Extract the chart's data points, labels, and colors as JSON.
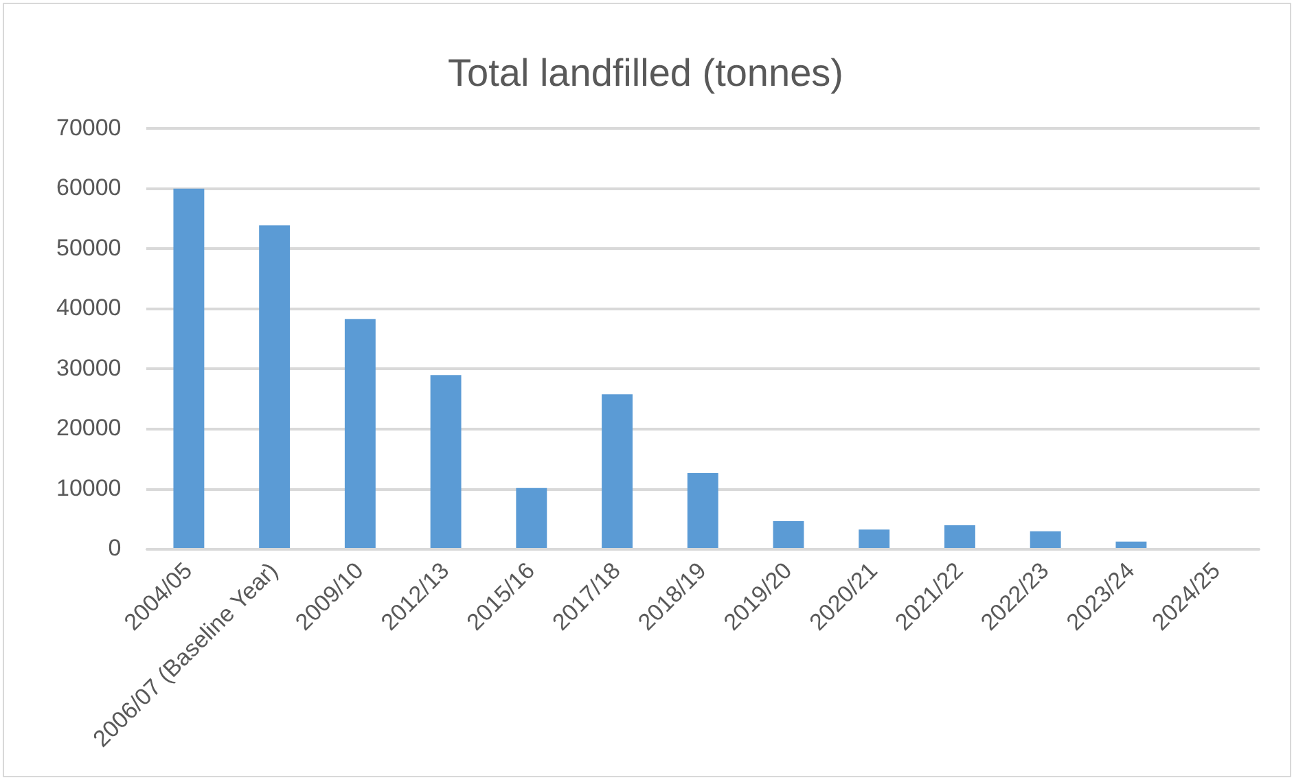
{
  "chart_data": {
    "type": "bar",
    "title": "Total landfilled (tonnes)",
    "categories": [
      "2004/05",
      "2006/07 (Baseline Year)",
      "2009/10",
      "2012/13",
      "2015/16",
      "2017/18",
      "2018/19",
      "2019/20",
      "2020/21",
      "2021/22",
      "2022/23",
      "2023/24",
      "2024/25"
    ],
    "values": [
      60000,
      53900,
      38300,
      29000,
      10200,
      25800,
      12700,
      4700,
      3300,
      4000,
      3000,
      1300,
      null
    ],
    "color": "#5b9bd5",
    "ylim": [
      0,
      70000
    ],
    "yticks": [
      0,
      10000,
      20000,
      30000,
      40000,
      50000,
      60000,
      70000
    ],
    "grid": "y",
    "legend": false
  }
}
